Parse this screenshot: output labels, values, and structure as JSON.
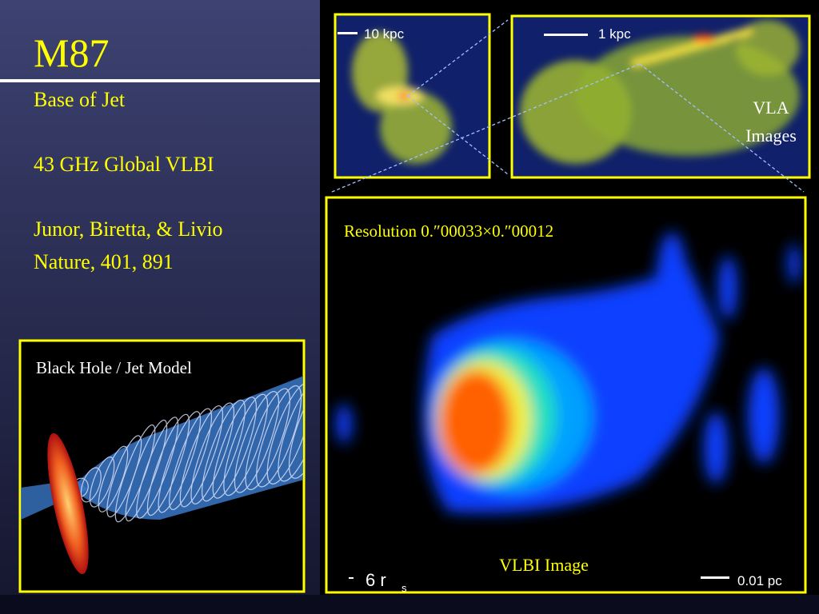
{
  "slide": {
    "title": "M87",
    "subtitle": "Base of Jet",
    "lines": [
      "43 GHz Global VLBI",
      "Junor, Biretta, & Livio",
      "Nature, 401, 891"
    ]
  },
  "model_panel": {
    "label": "Black Hole / Jet Model"
  },
  "vla_panel": {
    "label_lines": [
      "VLA",
      "Images"
    ],
    "scale_labels": [
      "10 kpc",
      "1 kpc"
    ]
  },
  "vlbi_panel": {
    "resolution": "Resolution 0.″00033×0.″00012",
    "label": "VLBI Image",
    "scale_labels": [
      "6 r",
      "s",
      "0.01 pc"
    ]
  }
}
